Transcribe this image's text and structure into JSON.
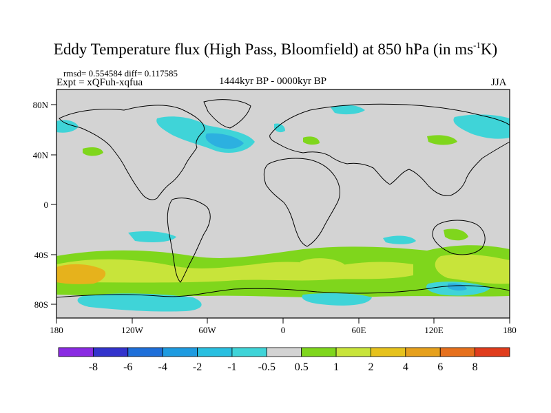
{
  "header": {
    "title_main": "Eddy Temperature flux (High Pass, Bloomfield) at 850 hPa (in ms",
    "title_sup": "-1",
    "title_end": "K)",
    "stats": "rmsd= 0.554584 diff= 0.117585",
    "experiment": "Expt = xQFuh-xqfua",
    "period": "1444kyr BP - 0000kyr BP",
    "season": "JJA"
  },
  "map": {
    "lat_labels": [
      "80N",
      "40N",
      "0",
      "40S",
      "80S"
    ],
    "lon_labels": [
      "180",
      "120W",
      "60W",
      "0",
      "60E",
      "120E",
      "180"
    ],
    "colors": {
      "land_neutral": "#d3d3d3",
      "pos_1": "#7fd61c",
      "pos_2": "#c8e43a",
      "pos_3": "#e6b21c",
      "neg_1": "#3fd4d8",
      "neg_2": "#2cb0e0"
    }
  },
  "colorbar": {
    "labels": [
      "-8",
      "-6",
      "-4",
      "-2",
      "-1",
      "-0.5",
      "0.5",
      "1",
      "2",
      "4",
      "6",
      "8"
    ],
    "colors": [
      "#8a2be2",
      "#3333cc",
      "#1e6fd9",
      "#1e9be0",
      "#29bfe0",
      "#3fd4d8",
      "#d3d3d3",
      "#7fd61c",
      "#c8e43a",
      "#e6c21c",
      "#e6a01c",
      "#e6701c",
      "#e03c1c"
    ]
  }
}
